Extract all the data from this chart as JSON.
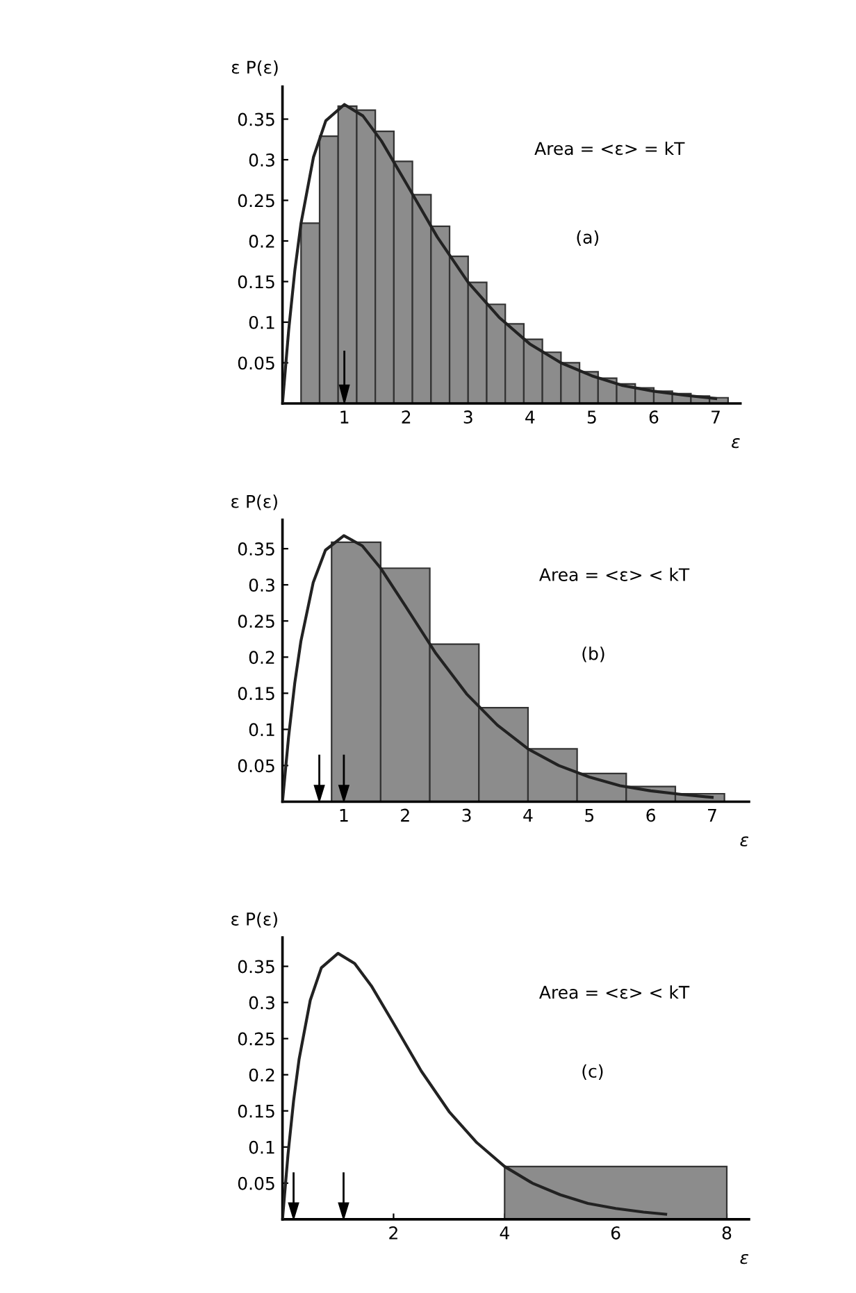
{
  "chart_data": [
    {
      "type": "histogram",
      "ylabel": "ε P(ε)",
      "xlabel": "ε",
      "annotations": [
        "Area = <ε> = kT",
        "(a)"
      ],
      "bins": [
        0.3,
        0.6,
        0.9,
        1.2,
        1.5,
        1.8,
        2.1,
        2.4,
        2.7,
        3.0,
        3.3,
        3.6,
        3.9,
        4.2,
        4.5,
        4.8,
        5.1,
        5.4,
        5.7,
        6.0,
        6.3,
        6.6,
        6.9,
        7.2
      ],
      "values": [
        0.222,
        0.329,
        0.366,
        0.361,
        0.335,
        0.298,
        0.257,
        0.218,
        0.181,
        0.149,
        0.122,
        0.098,
        0.079,
        0.063,
        0.05,
        0.039,
        0.031,
        0.024,
        0.019,
        0.015,
        0.012,
        0.009,
        0.007
      ],
      "color": "#8c8c8c",
      "series": [
        {
          "type": "line",
          "color": "#222222",
          "x": [
            0,
            0.1,
            0.2,
            0.3,
            0.5,
            0.7,
            1,
            1.3,
            1.6,
            2,
            2.5,
            3,
            3.5,
            4,
            4.5,
            5,
            5.5,
            6,
            6.5,
            7
          ],
          "values": [
            0,
            0.09,
            0.164,
            0.222,
            0.303,
            0.348,
            0.368,
            0.354,
            0.323,
            0.271,
            0.205,
            0.149,
            0.106,
            0.073,
            0.05,
            0.034,
            0.022,
            0.015,
            0.01,
            0.006
          ]
        }
      ],
      "ref_lines": [
        {
          "axis": "x",
          "value": 1
        }
      ],
      "xlim": [
        0,
        7.4
      ],
      "ylim": [
        0,
        0.39
      ],
      "xticks": [
        1,
        2,
        3,
        4,
        5,
        6,
        7
      ],
      "yticks": [
        0.05,
        0.1,
        0.15,
        0.2,
        0.25,
        0.3,
        0.35
      ],
      "grid": false
    },
    {
      "type": "histogram",
      "ylabel": "ε P(ε)",
      "xlabel": "ε",
      "annotations": [
        "Area = <ε> < kT",
        "(b)"
      ],
      "bins": [
        0.8,
        1.6,
        2.4,
        3.2,
        4.0,
        4.8,
        5.6,
        6.4,
        7.2
      ],
      "values": [
        0.359,
        0.323,
        0.218,
        0.13,
        0.073,
        0.039,
        0.021,
        0.011
      ],
      "color": "#8c8c8c",
      "series": [
        {
          "type": "line",
          "color": "#222222",
          "x": [
            0,
            0.1,
            0.2,
            0.3,
            0.5,
            0.7,
            1,
            1.3,
            1.6,
            2,
            2.5,
            3,
            3.5,
            4,
            4.5,
            5,
            5.5,
            6,
            6.5,
            7
          ],
          "values": [
            0,
            0.09,
            0.164,
            0.222,
            0.303,
            0.348,
            0.368,
            0.354,
            0.323,
            0.271,
            0.205,
            0.149,
            0.106,
            0.073,
            0.05,
            0.034,
            0.022,
            0.015,
            0.01,
            0.006
          ]
        }
      ],
      "ref_lines": [
        {
          "axis": "x",
          "value": 0.6
        },
        {
          "axis": "x",
          "value": 1
        }
      ],
      "xlim": [
        0,
        7.6
      ],
      "ylim": [
        0,
        0.39
      ],
      "xticks": [
        1,
        2,
        3,
        4,
        5,
        6,
        7
      ],
      "yticks": [
        0.05,
        0.1,
        0.15,
        0.2,
        0.25,
        0.3,
        0.35
      ],
      "grid": false
    },
    {
      "type": "histogram",
      "ylabel": "ε P(ε)",
      "xlabel": "ε",
      "annotations": [
        "Area = <ε> < kT",
        "(c)"
      ],
      "bins": [
        4,
        8
      ],
      "values": [
        0.073
      ],
      "color": "#8c8c8c",
      "series": [
        {
          "type": "line",
          "color": "#222222",
          "x": [
            0,
            0.1,
            0.2,
            0.3,
            0.5,
            0.7,
            1,
            1.3,
            1.6,
            2,
            2.5,
            3,
            3.5,
            4,
            4.5,
            5,
            5.5,
            6,
            6.5,
            6.9
          ],
          "values": [
            0,
            0.09,
            0.164,
            0.222,
            0.303,
            0.348,
            0.368,
            0.354,
            0.323,
            0.271,
            0.205,
            0.149,
            0.106,
            0.073,
            0.05,
            0.034,
            0.022,
            0.015,
            0.01,
            0.007
          ]
        }
      ],
      "ref_lines": [
        {
          "axis": "x",
          "value": 0.2
        },
        {
          "axis": "x",
          "value": 1.1
        }
      ],
      "xlim": [
        0,
        8.4
      ],
      "ylim": [
        0,
        0.39
      ],
      "xticks": [
        2,
        4,
        6,
        8
      ],
      "yticks": [
        0.05,
        0.1,
        0.15,
        0.2,
        0.25,
        0.3,
        0.35
      ],
      "grid": false
    }
  ]
}
